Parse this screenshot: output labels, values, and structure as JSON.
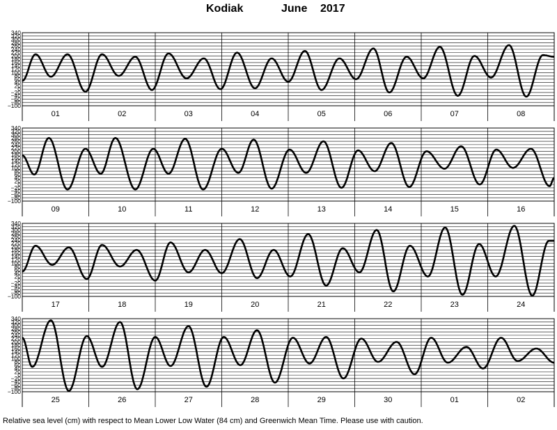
{
  "title": {
    "place": "Kodiak",
    "month": "June",
    "year": "2017"
  },
  "footer": "Relative sea level (cm) with respect to Mean Lower Low Water (84 cm) and Greenwich Mean Time. Please use with caution.",
  "colors": {
    "curve": "#000000",
    "grid": "#000000",
    "background": "#ffffff"
  },
  "chart_data": {
    "type": "line",
    "ylim": [
      -100,
      340
    ],
    "yticks": [
      340,
      320,
      300,
      280,
      260,
      240,
      220,
      200,
      180,
      160,
      140,
      120,
      100,
      80,
      60,
      40,
      20,
      0,
      -20,
      -40,
      -60,
      -80,
      -100
    ],
    "grid": true,
    "panels": [
      {
        "days": [
          "01",
          "02",
          "03",
          "04",
          "05",
          "06",
          "07",
          "08"
        ],
        "start": 50,
        "extrema": [
          [
            0.2,
            210
          ],
          [
            0.43,
            75
          ],
          [
            0.68,
            210
          ],
          [
            0.95,
            -15
          ],
          [
            1.2,
            210
          ],
          [
            1.45,
            80
          ],
          [
            1.7,
            195
          ],
          [
            1.95,
            -5
          ],
          [
            2.2,
            215
          ],
          [
            2.47,
            65
          ],
          [
            2.73,
            185
          ],
          [
            2.98,
            0
          ],
          [
            3.23,
            220
          ],
          [
            3.5,
            5
          ],
          [
            3.75,
            185
          ],
          [
            4.0,
            45
          ],
          [
            4.25,
            230
          ],
          [
            4.5,
            -5
          ],
          [
            4.77,
            185
          ],
          [
            5.02,
            60
          ],
          [
            5.28,
            245
          ],
          [
            5.52,
            -20
          ],
          [
            5.78,
            195
          ],
          [
            6.03,
            65
          ],
          [
            6.28,
            255
          ],
          [
            6.55,
            -40
          ],
          [
            6.8,
            200
          ],
          [
            7.05,
            70
          ],
          [
            7.32,
            265
          ],
          [
            7.58,
            -45
          ],
          [
            7.83,
            205
          ],
          [
            8.0,
            195
          ]
        ]
      },
      {
        "days": [
          "09",
          "10",
          "11",
          "12",
          "13",
          "14",
          "15",
          "16"
        ],
        "start": 175,
        "extrema": [
          [
            0.18,
            60
          ],
          [
            0.4,
            280
          ],
          [
            0.68,
            -30
          ],
          [
            0.95,
            215
          ],
          [
            1.18,
            65
          ],
          [
            1.4,
            280
          ],
          [
            1.7,
            -30
          ],
          [
            1.97,
            215
          ],
          [
            2.2,
            65
          ],
          [
            2.45,
            275
          ],
          [
            2.72,
            -30
          ],
          [
            3.0,
            215
          ],
          [
            3.25,
            70
          ],
          [
            3.48,
            270
          ],
          [
            3.75,
            -25
          ],
          [
            4.02,
            210
          ],
          [
            4.27,
            70
          ],
          [
            4.53,
            260
          ],
          [
            4.8,
            -20
          ],
          [
            5.05,
            205
          ],
          [
            5.3,
            80
          ],
          [
            5.55,
            250
          ],
          [
            5.82,
            -15
          ],
          [
            6.08,
            200
          ],
          [
            6.35,
            95
          ],
          [
            6.6,
            230
          ],
          [
            6.88,
            0
          ],
          [
            7.13,
            210
          ],
          [
            7.38,
            100
          ],
          [
            7.65,
            215
          ],
          [
            7.93,
            -10
          ],
          [
            8.0,
            40
          ]
        ]
      },
      {
        "days": [
          "17",
          "18",
          "19",
          "20",
          "21",
          "22",
          "23",
          "24"
        ],
        "start": 50,
        "extrema": [
          [
            0.2,
            205
          ],
          [
            0.45,
            90
          ],
          [
            0.7,
            195
          ],
          [
            0.97,
            5
          ],
          [
            1.2,
            210
          ],
          [
            1.47,
            80
          ],
          [
            1.72,
            180
          ],
          [
            2.0,
            -5
          ],
          [
            2.23,
            225
          ],
          [
            2.5,
            45
          ],
          [
            2.75,
            180
          ],
          [
            3.0,
            40
          ],
          [
            3.27,
            245
          ],
          [
            3.53,
            10
          ],
          [
            3.78,
            180
          ],
          [
            4.03,
            20
          ],
          [
            4.3,
            275
          ],
          [
            4.57,
            -35
          ],
          [
            4.82,
            190
          ],
          [
            5.07,
            45
          ],
          [
            5.33,
            300
          ],
          [
            5.58,
            -70
          ],
          [
            5.83,
            205
          ],
          [
            6.1,
            20
          ],
          [
            6.36,
            315
          ],
          [
            6.62,
            -90
          ],
          [
            6.87,
            215
          ],
          [
            7.12,
            20
          ],
          [
            7.4,
            325
          ],
          [
            7.67,
            -95
          ],
          [
            7.92,
            235
          ],
          [
            8.0,
            235
          ]
        ]
      },
      {
        "days": [
          "25",
          "26",
          "27",
          "28",
          "29",
          "30",
          "01",
          "02"
        ],
        "start": 225,
        "extrema": [
          [
            0.15,
            50
          ],
          [
            0.43,
            330
          ],
          [
            0.7,
            -95
          ],
          [
            0.97,
            235
          ],
          [
            1.2,
            50
          ],
          [
            1.47,
            320
          ],
          [
            1.73,
            -85
          ],
          [
            2.0,
            230
          ],
          [
            2.23,
            55
          ],
          [
            2.5,
            295
          ],
          [
            2.77,
            -70
          ],
          [
            3.03,
            230
          ],
          [
            3.28,
            60
          ],
          [
            3.53,
            270
          ],
          [
            3.8,
            -45
          ],
          [
            4.07,
            225
          ],
          [
            4.32,
            70
          ],
          [
            4.57,
            230
          ],
          [
            4.83,
            -20
          ],
          [
            5.1,
            220
          ],
          [
            5.35,
            80
          ],
          [
            5.63,
            200
          ],
          [
            5.9,
            5
          ],
          [
            6.15,
            225
          ],
          [
            6.4,
            75
          ],
          [
            6.68,
            170
          ],
          [
            6.93,
            40
          ],
          [
            7.2,
            225
          ],
          [
            7.45,
            85
          ],
          [
            7.73,
            160
          ],
          [
            8.0,
            75
          ]
        ]
      }
    ]
  }
}
